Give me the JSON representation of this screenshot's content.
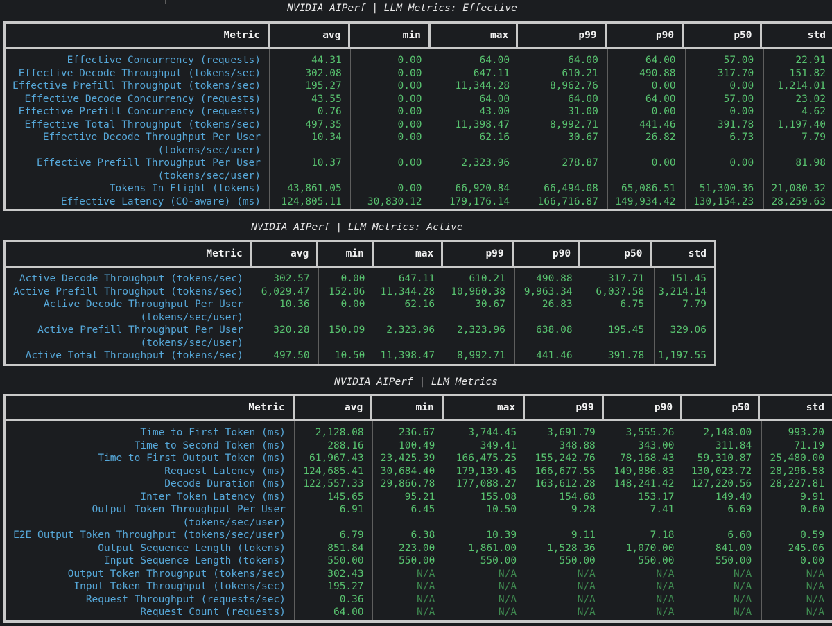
{
  "columns": [
    "Metric",
    "avg",
    "min",
    "max",
    "p99",
    "p90",
    "p50",
    "std"
  ],
  "tables": [
    {
      "title": "NVIDIA AIPerf | LLM Metrics: Effective",
      "rows": [
        {
          "metric": [
            "Effective Concurrency (requests)"
          ],
          "values": [
            "44.31",
            "0.00",
            "64.00",
            "64.00",
            "64.00",
            "57.00",
            "22.91"
          ]
        },
        {
          "metric": [
            "Effective Decode Throughput (tokens/sec)"
          ],
          "values": [
            "302.08",
            "0.00",
            "647.11",
            "610.21",
            "490.88",
            "317.70",
            "151.82"
          ]
        },
        {
          "metric": [
            "Effective Prefill Throughput (tokens/sec)"
          ],
          "values": [
            "195.27",
            "0.00",
            "11,344.28",
            "8,962.76",
            "0.00",
            "0.00",
            "1,214.01"
          ]
        },
        {
          "metric": [
            "Effective Decode Concurrency (requests)"
          ],
          "values": [
            "43.55",
            "0.00",
            "64.00",
            "64.00",
            "64.00",
            "57.00",
            "23.02"
          ]
        },
        {
          "metric": [
            "Effective Prefill Concurrency (requests)"
          ],
          "values": [
            "0.76",
            "0.00",
            "43.00",
            "31.00",
            "0.00",
            "0.00",
            "4.62"
          ]
        },
        {
          "metric": [
            "Effective Total Throughput (tokens/sec)"
          ],
          "values": [
            "497.35",
            "0.00",
            "11,398.47",
            "8,992.71",
            "441.46",
            "391.78",
            "1,197.40"
          ]
        },
        {
          "metric": [
            "Effective Decode Throughput Per User",
            "(tokens/sec/user)"
          ],
          "values": [
            "10.34",
            "0.00",
            "62.16",
            "30.67",
            "26.82",
            "6.73",
            "7.79"
          ]
        },
        {
          "metric": [
            "Effective Prefill Throughput Per User",
            "(tokens/sec/user)"
          ],
          "values": [
            "10.37",
            "0.00",
            "2,323.96",
            "278.87",
            "0.00",
            "0.00",
            "81.98"
          ]
        },
        {
          "metric": [
            "Tokens In Flight (tokens)"
          ],
          "values": [
            "43,861.05",
            "0.00",
            "66,920.84",
            "66,494.08",
            "65,086.51",
            "51,300.36",
            "21,080.32"
          ]
        },
        {
          "metric": [
            "Effective Latency (CO-aware) (ms)"
          ],
          "values": [
            "124,805.11",
            "30,830.12",
            "179,176.14",
            "166,716.87",
            "149,934.42",
            "130,154.23",
            "28,259.63"
          ]
        }
      ]
    },
    {
      "title": "NVIDIA AIPerf | LLM Metrics: Active",
      "rows": [
        {
          "metric": [
            "Active Decode Throughput (tokens/sec)"
          ],
          "values": [
            "302.57",
            "0.00",
            "647.11",
            "610.21",
            "490.88",
            "317.71",
            "151.45"
          ]
        },
        {
          "metric": [
            "Active Prefill Throughput (tokens/sec)"
          ],
          "values": [
            "6,029.47",
            "152.06",
            "11,344.28",
            "10,960.38",
            "9,963.34",
            "6,037.58",
            "3,214.14"
          ]
        },
        {
          "metric": [
            "Active Decode Throughput Per User",
            "(tokens/sec/user)"
          ],
          "values": [
            "10.36",
            "0.00",
            "62.16",
            "30.67",
            "26.83",
            "6.75",
            "7.79"
          ]
        },
        {
          "metric": [
            "Active Prefill Throughput Per User",
            "(tokens/sec/user)"
          ],
          "values": [
            "320.28",
            "150.09",
            "2,323.96",
            "2,323.96",
            "638.08",
            "195.45",
            "329.06"
          ]
        },
        {
          "metric": [
            "Active Total Throughput (tokens/sec)"
          ],
          "values": [
            "497.50",
            "10.50",
            "11,398.47",
            "8,992.71",
            "441.46",
            "391.78",
            "1,197.55"
          ]
        }
      ]
    },
    {
      "title": "NVIDIA AIPerf | LLM Metrics",
      "rows": [
        {
          "metric": [
            "Time to First Token (ms)"
          ],
          "values": [
            "2,128.08",
            "236.67",
            "3,744.45",
            "3,691.79",
            "3,555.26",
            "2,148.00",
            "993.20"
          ]
        },
        {
          "metric": [
            "Time to Second Token (ms)"
          ],
          "values": [
            "288.16",
            "100.49",
            "349.41",
            "348.88",
            "343.00",
            "311.84",
            "71.19"
          ]
        },
        {
          "metric": [
            "Time to First Output Token (ms)"
          ],
          "values": [
            "61,967.43",
            "23,425.39",
            "166,475.25",
            "155,242.76",
            "78,168.43",
            "59,310.87",
            "25,480.00"
          ]
        },
        {
          "metric": [
            "Request Latency (ms)"
          ],
          "values": [
            "124,685.41",
            "30,684.40",
            "179,139.45",
            "166,677.55",
            "149,886.83",
            "130,023.72",
            "28,296.58"
          ]
        },
        {
          "metric": [
            "Decode Duration (ms)"
          ],
          "values": [
            "122,557.33",
            "29,866.78",
            "177,088.27",
            "163,612.28",
            "148,241.42",
            "127,220.56",
            "28,227.81"
          ]
        },
        {
          "metric": [
            "Inter Token Latency (ms)"
          ],
          "values": [
            "145.65",
            "95.21",
            "155.08",
            "154.68",
            "153.17",
            "149.40",
            "9.91"
          ]
        },
        {
          "metric": [
            "Output Token Throughput Per User",
            "(tokens/sec/user)"
          ],
          "values": [
            "6.91",
            "6.45",
            "10.50",
            "9.28",
            "7.41",
            "6.69",
            "0.60"
          ]
        },
        {
          "metric": [
            "E2E Output Token Throughput (tokens/sec/user)"
          ],
          "values": [
            "6.79",
            "6.38",
            "10.39",
            "9.11",
            "7.18",
            "6.60",
            "0.59"
          ]
        },
        {
          "metric": [
            "Output Sequence Length (tokens)"
          ],
          "values": [
            "851.84",
            "223.00",
            "1,861.00",
            "1,528.36",
            "1,070.00",
            "841.00",
            "245.06"
          ]
        },
        {
          "metric": [
            "Input Sequence Length (tokens)"
          ],
          "values": [
            "550.00",
            "550.00",
            "550.00",
            "550.00",
            "550.00",
            "550.00",
            "0.00"
          ]
        },
        {
          "metric": [
            "Output Token Throughput (tokens/sec)"
          ],
          "values": [
            "302.43",
            "N/A",
            "N/A",
            "N/A",
            "N/A",
            "N/A",
            "N/A"
          ]
        },
        {
          "metric": [
            "Input Token Throughput (tokens/sec)"
          ],
          "values": [
            "195.27",
            "N/A",
            "N/A",
            "N/A",
            "N/A",
            "N/A",
            "N/A"
          ]
        },
        {
          "metric": [
            "Request Throughput (requests/sec)"
          ],
          "values": [
            "0.36",
            "N/A",
            "N/A",
            "N/A",
            "N/A",
            "N/A",
            "N/A"
          ]
        },
        {
          "metric": [
            "Request Count (requests)"
          ],
          "values": [
            "64.00",
            "N/A",
            "N/A",
            "N/A",
            "N/A",
            "N/A",
            "N/A"
          ]
        }
      ]
    }
  ]
}
